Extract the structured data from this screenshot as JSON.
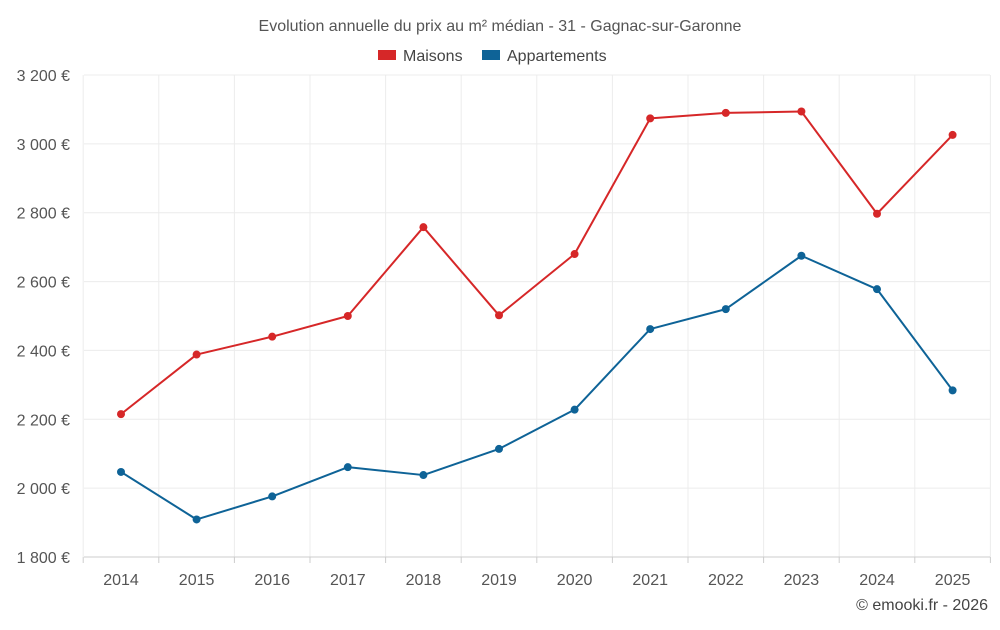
{
  "chart_data": {
    "type": "line",
    "title": "Evolution annuelle du prix au m² médian - 31 - Gagnac-sur-Garonne",
    "categories": [
      "2014",
      "2015",
      "2016",
      "2017",
      "2018",
      "2019",
      "2020",
      "2021",
      "2022",
      "2023",
      "2024",
      "2025"
    ],
    "series": [
      {
        "name": "Maisons",
        "color": "#d62728",
        "values": [
          2215,
          2388,
          2440,
          2500,
          2758,
          2502,
          2680,
          3074,
          3090,
          3094,
          2797,
          3026
        ]
      },
      {
        "name": "Appartements",
        "color": "#0e6397",
        "values": [
          2047,
          1909,
          1976,
          2061,
          2038,
          2114,
          2228,
          2462,
          2520,
          2675,
          2578,
          2284
        ]
      }
    ],
    "y_ticks": [
      1800,
      2000,
      2200,
      2400,
      2600,
      2800,
      3000,
      3200
    ],
    "y_tick_labels": [
      "1 800 €",
      "2 000 €",
      "2 200 €",
      "2 400 €",
      "2 600 €",
      "2 800 €",
      "3 000 €",
      "3 200 €"
    ],
    "ylim": [
      1800,
      3200
    ],
    "xlabel": "",
    "ylabel": "",
    "grid": true,
    "legend_position": "top-center",
    "credit": "© emooki.fr - 2026"
  }
}
